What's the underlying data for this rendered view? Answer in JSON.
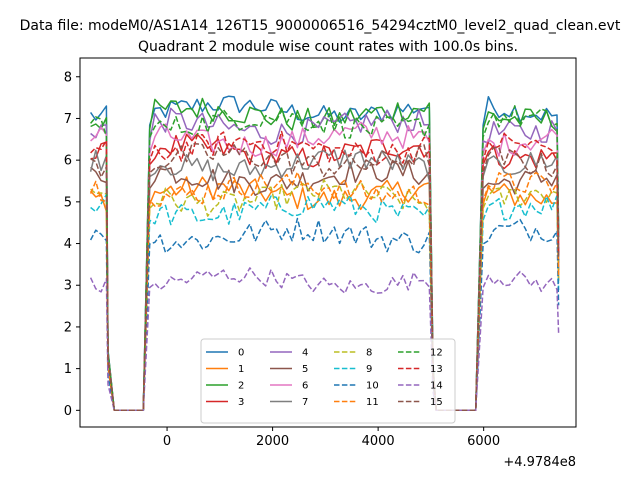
{
  "chart_data": {
    "type": "line",
    "suptitle": "Data file: modeM0/AS1A14_126T15_9000006516_54294cztM0_level2_quad_clean.evt",
    "title": "Quadrant 2 module wise count rates with 100.0s bins.",
    "xlabel": "",
    "ylabel": "",
    "x_offset_label": "+4.9784e8",
    "xlim": [
      -1650,
      7750
    ],
    "ylim": [
      -0.4,
      8.45
    ],
    "x_ticks": [
      0,
      2000,
      4000,
      6000
    ],
    "x_tick_labels": [
      "0",
      "2000",
      "4000",
      "6000"
    ],
    "y_ticks": [
      0,
      1,
      2,
      3,
      4,
      5,
      6,
      7,
      8
    ],
    "y_tick_labels": [
      "0",
      "1",
      "2",
      "3",
      "4",
      "5",
      "6",
      "7",
      "8"
    ],
    "legend": {
      "location": "lower-center",
      "columns": 4
    },
    "gaps": [
      {
        "drop_start": -1120,
        "zero_from": -1000,
        "zero_to": -450,
        "rise_end": -330
      },
      {
        "drop_start": 4980,
        "zero_from": 5100,
        "zero_to": 5850,
        "rise_end": 5990
      }
    ],
    "segments": [
      {
        "from": -1450,
        "to": -1130
      },
      {
        "from": -330,
        "to": 4980
      },
      {
        "from": 5990,
        "to": 7420
      }
    ],
    "series": [
      {
        "name": "0",
        "color": "#1f77b4",
        "dash": "solid",
        "level": 7.2,
        "noise": 0.25
      },
      {
        "name": "1",
        "color": "#ff7f0e",
        "dash": "solid",
        "level": 5.2,
        "noise": 0.3
      },
      {
        "name": "2",
        "color": "#2ca02c",
        "dash": "solid",
        "level": 7.1,
        "noise": 0.3
      },
      {
        "name": "3",
        "color": "#d62728",
        "dash": "solid",
        "level": 6.2,
        "noise": 0.3
      },
      {
        "name": "4",
        "color": "#9467bd",
        "dash": "solid",
        "level": 6.8,
        "noise": 0.3
      },
      {
        "name": "5",
        "color": "#8c564b",
        "dash": "solid",
        "level": 5.6,
        "noise": 0.3
      },
      {
        "name": "6",
        "color": "#e377c2",
        "dash": "solid",
        "level": 6.5,
        "noise": 0.3
      },
      {
        "name": "7",
        "color": "#7f7f7f",
        "dash": "solid",
        "level": 5.9,
        "noise": 0.3
      },
      {
        "name": "8",
        "color": "#bcbd22",
        "dash": "dashed",
        "level": 5.1,
        "noise": 0.3
      },
      {
        "name": "9",
        "color": "#17becf",
        "dash": "dashed",
        "level": 4.8,
        "noise": 0.3
      },
      {
        "name": "10",
        "color": "#1f77b4",
        "dash": "dashed",
        "level": 4.2,
        "noise": 0.3
      },
      {
        "name": "11",
        "color": "#ff7f0e",
        "dash": "dashed",
        "level": 5.3,
        "noise": 0.3
      },
      {
        "name": "12",
        "color": "#2ca02c",
        "dash": "dashed",
        "level": 6.9,
        "noise": 0.3
      },
      {
        "name": "13",
        "color": "#d62728",
        "dash": "dashed",
        "level": 6.3,
        "noise": 0.3
      },
      {
        "name": "14",
        "color": "#9467bd",
        "dash": "dashed",
        "level": 3.1,
        "noise": 0.22
      },
      {
        "name": "15",
        "color": "#8c564b",
        "dash": "dashed",
        "level": 6.0,
        "noise": 0.3
      }
    ]
  }
}
